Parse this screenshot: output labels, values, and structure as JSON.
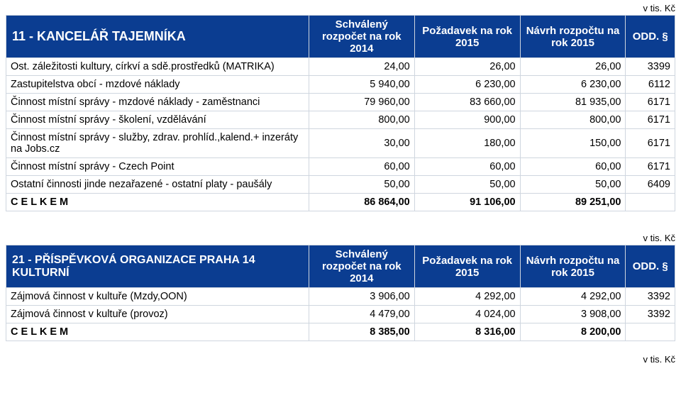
{
  "unit_label": "v tis. Kč",
  "columns": {
    "col_a": "Schválený rozpočet na rok 2014",
    "col_b": "Požadavek na rok 2015",
    "col_c": "Návrh rozpočtu na rok 2015",
    "col_d": "ODD. §"
  },
  "table1": {
    "title": "11 - KANCELÁŘ TAJEMNÍKA",
    "rows": [
      {
        "label": "Ost. záležitosti kultury, církví a sdě.prostředků (MATRIKA)",
        "a": "24,00",
        "b": "26,00",
        "c": "26,00",
        "d": "3399"
      },
      {
        "label": "Zastupitelstva obcí - mzdové náklady",
        "a": "5 940,00",
        "b": "6 230,00",
        "c": "6 230,00",
        "d": "6112"
      },
      {
        "label": "Činnost místní správy - mzdové náklady - zaměstnanci",
        "a": "79 960,00",
        "b": "83 660,00",
        "c": "81 935,00",
        "d": "6171"
      },
      {
        "label": "Činnost místní správy - školení, vzdělávání",
        "a": "800,00",
        "b": "900,00",
        "c": "800,00",
        "d": "6171"
      },
      {
        "label": "Činnost místní správy - služby, zdrav. prohlíd.,kalend.+ inzeráty na Jobs.cz",
        "a": "30,00",
        "b": "180,00",
        "c": "150,00",
        "d": "6171"
      },
      {
        "label": "Činnost místní správy - Czech Point",
        "a": "60,00",
        "b": "60,00",
        "c": "60,00",
        "d": "6171"
      },
      {
        "label": "Ostatní činnosti jinde nezařazené - ostatní platy - paušály",
        "a": "50,00",
        "b": "50,00",
        "c": "50,00",
        "d": "6409"
      }
    ],
    "total": {
      "label": "C E L K E M",
      "a": "86 864,00",
      "b": "91 106,00",
      "c": "89 251,00",
      "d": ""
    }
  },
  "table2": {
    "title": "21 - PŘÍSPĚVKOVÁ ORGANIZACE PRAHA 14 KULTURNÍ",
    "rows": [
      {
        "label": "Zájmová činnost v kultuře (Mzdy,OON)",
        "a": "3 906,00",
        "b": "4 292,00",
        "c": "4 292,00",
        "d": "3392"
      },
      {
        "label": "Zájmová činnost v kultuře (provoz)",
        "a": "4 479,00",
        "b": "4 024,00",
        "c": "3 908,00",
        "d": "3392"
      }
    ],
    "total": {
      "label": "C E L K E M",
      "a": "8 385,00",
      "b": "8 316,00",
      "c": "8 200,00",
      "d": ""
    }
  },
  "colors": {
    "header_bg": "#0b3d91",
    "header_fg": "#ffffff",
    "border": "#cfd6df",
    "text": "#000000"
  },
  "font": {
    "family": "Arial",
    "header_size_pt": 15,
    "body_size_pt": 14.5
  }
}
